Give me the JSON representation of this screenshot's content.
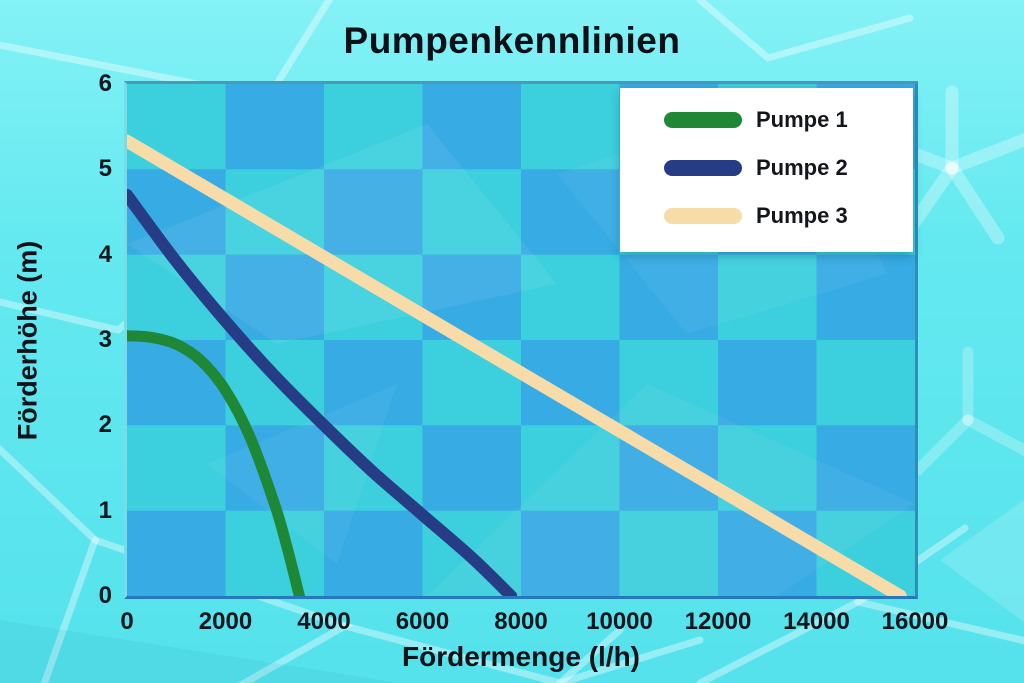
{
  "figure": {
    "title": "Pumpenkennlinien"
  },
  "colors": {
    "background": "#64e9f0",
    "checker_light": "#3ccfdd",
    "checker_dark": "#36abe4",
    "plot_border": "#2f8fb4",
    "text": "#0d1016",
    "legend_background": "#ffffff"
  },
  "chart_data": {
    "type": "line",
    "title": "Pumpenkennlinien",
    "xlabel": "Fördermenge (l/h)",
    "ylabel": "Förderhöhe (m)",
    "xlim": [
      0,
      16000
    ],
    "ylim": [
      0,
      6
    ],
    "x_ticks": [
      0,
      2000,
      4000,
      6000,
      8000,
      10000,
      12000,
      14000,
      16000
    ],
    "y_ticks": [
      0,
      1,
      2,
      3,
      4,
      5,
      6
    ],
    "grid": "checkerboard 2000 x 1",
    "legend_position": "top-right",
    "series": [
      {
        "name": "Pumpe 1",
        "color": "#1f8836",
        "stroke_width": 11,
        "points": [
          [
            0,
            3.05
          ],
          [
            500,
            3.03
          ],
          [
            1000,
            2.95
          ],
          [
            1500,
            2.76
          ],
          [
            2000,
            2.41
          ],
          [
            2500,
            1.86
          ],
          [
            3000,
            1.07
          ],
          [
            3250,
            0.57
          ],
          [
            3500,
            0
          ]
        ]
      },
      {
        "name": "Pumpe 2",
        "color": "#263c85",
        "stroke_width": 12,
        "points": [
          [
            0,
            4.7
          ],
          [
            1000,
            3.92
          ],
          [
            2000,
            3.22
          ],
          [
            3000,
            2.58
          ],
          [
            4000,
            2.0
          ],
          [
            5000,
            1.45
          ],
          [
            6000,
            0.95
          ],
          [
            7000,
            0.45
          ],
          [
            7800,
            0
          ]
        ]
      },
      {
        "name": "Pumpe 3",
        "color": "#f7dcaa",
        "stroke_width": 13,
        "points": [
          [
            0,
            5.33
          ],
          [
            15700,
            0
          ]
        ]
      }
    ]
  }
}
